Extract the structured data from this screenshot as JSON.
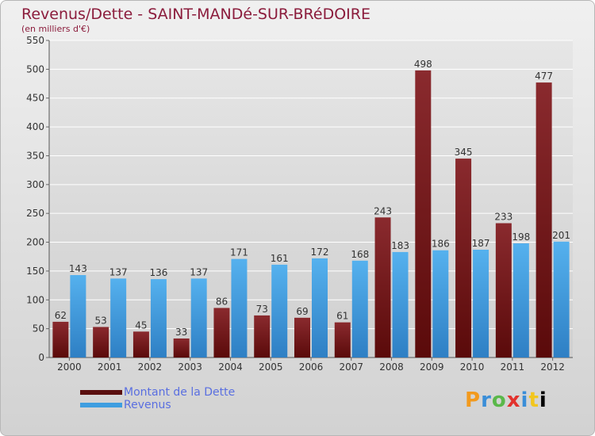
{
  "title": "Revenus/Dette - SAINT-MANDé-SUR-BRéDOIRE",
  "subtitle": "(en milliers d'€)",
  "legend": {
    "debt_label": "Montant de la Dette",
    "revenue_label": "Revenus"
  },
  "logo": {
    "letters": [
      "P",
      "r",
      "o",
      "x",
      "i",
      "t",
      "i"
    ]
  },
  "colors": {
    "debt": "#7b1a1a",
    "revenue": "#3e9ee0",
    "grid": "#ffffff",
    "axis_text": "#333333"
  },
  "chart_data": {
    "type": "bar",
    "categories": [
      "2000",
      "2001",
      "2002",
      "2003",
      "2004",
      "2005",
      "2006",
      "2007",
      "2008",
      "2009",
      "2010",
      "2011",
      "2012"
    ],
    "series": [
      {
        "name": "Montant de la Dette",
        "values": [
          62,
          53,
          45,
          33,
          86,
          73,
          69,
          61,
          243,
          498,
          345,
          233,
          477
        ]
      },
      {
        "name": "Revenus",
        "values": [
          143,
          137,
          136,
          137,
          171,
          161,
          172,
          168,
          183,
          186,
          187,
          198,
          201
        ]
      }
    ],
    "ylim": [
      0,
      550
    ],
    "yticks": [
      0,
      50,
      100,
      150,
      200,
      250,
      300,
      350,
      400,
      450,
      500,
      550
    ],
    "grid": true,
    "legend_position": "bottom-left"
  }
}
